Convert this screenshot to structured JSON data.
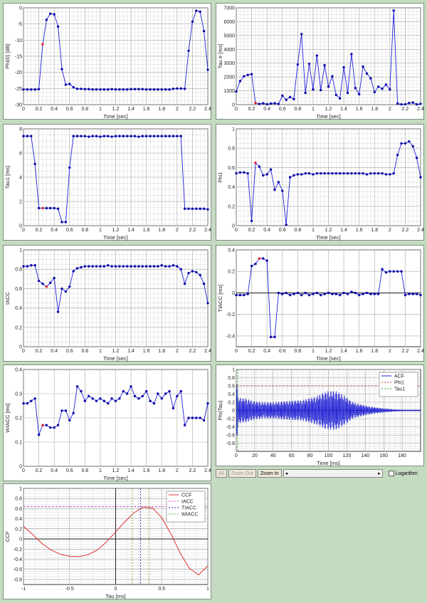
{
  "chart_data": [
    {
      "type": "line",
      "id": "phi0",
      "xlabel": "Time [sec]",
      "ylabel": "Phi(0) [dB]",
      "xlim": [
        0,
        2.4
      ],
      "ylim": [
        -30,
        0
      ],
      "xticks": [
        "0",
        "0.2",
        "0.4",
        "0.6",
        "0.8",
        "1",
        "1.2",
        "1.4",
        "1.6",
        "1.8",
        "2",
        "2.2",
        "2.4"
      ],
      "yticks": [
        "-30",
        "-25",
        "-20",
        "-15",
        "-10",
        "-5",
        "0"
      ],
      "grid": true,
      "highlight_index": 5,
      "x": [
        0,
        0.05,
        0.1,
        0.15,
        0.2,
        0.25,
        0.3,
        0.35,
        0.4,
        0.45,
        0.5,
        0.55,
        0.6,
        0.65,
        0.7,
        0.75,
        0.8,
        0.85,
        0.9,
        0.95,
        1.0,
        1.05,
        1.1,
        1.15,
        1.2,
        1.25,
        1.3,
        1.35,
        1.4,
        1.45,
        1.5,
        1.55,
        1.6,
        1.65,
        1.7,
        1.75,
        1.8,
        1.85,
        1.9,
        1.95,
        2.0,
        2.05,
        2.1,
        2.15,
        2.2,
        2.25,
        2.3,
        2.35,
        2.4
      ],
      "y": [
        -25.3,
        -25.3,
        -25.3,
        -25.3,
        -25.2,
        -11.3,
        -3.7,
        -1.8,
        -2.0,
        -5.8,
        -19.0,
        -23.8,
        -23.6,
        -24.6,
        -25.1,
        -25.1,
        -25.2,
        -25.2,
        -25.3,
        -25.3,
        -25.3,
        -25.3,
        -25.3,
        -25.2,
        -25.3,
        -25.3,
        -25.3,
        -25.3,
        -25.2,
        -25.2,
        -25.2,
        -25.2,
        -25.3,
        -25.3,
        -25.3,
        -25.3,
        -25.3,
        -25.3,
        -25.3,
        -25.1,
        -25.0,
        -25.0,
        -25.1,
        -13.3,
        -4.3,
        -0.9,
        -1.2,
        -7.2,
        -19.2
      ]
    },
    {
      "type": "line",
      "id": "taue",
      "xlabel": "Time [sec]",
      "ylabel": "Tau e [ms]",
      "xlim": [
        0,
        2.4
      ],
      "ylim": [
        0,
        7000
      ],
      "xticks": [
        "0",
        "0.2",
        "0.4",
        "0.6",
        "0.8",
        "1",
        "1.2",
        "1.4",
        "1.6",
        "1.8",
        "2",
        "2.2",
        "2.4"
      ],
      "yticks": [
        "0",
        "1000",
        "2000",
        "3000",
        "4000",
        "5000",
        "6000",
        "7000"
      ],
      "grid": true,
      "highlight_index": 5,
      "x": [
        0,
        0.05,
        0.1,
        0.15,
        0.2,
        0.25,
        0.3,
        0.35,
        0.4,
        0.45,
        0.5,
        0.55,
        0.6,
        0.65,
        0.7,
        0.75,
        0.8,
        0.85,
        0.9,
        0.95,
        1.0,
        1.05,
        1.1,
        1.15,
        1.2,
        1.25,
        1.3,
        1.35,
        1.4,
        1.45,
        1.5,
        1.55,
        1.6,
        1.65,
        1.7,
        1.75,
        1.8,
        1.85,
        1.9,
        1.95,
        2.0,
        2.05,
        2.1,
        2.15,
        2.2,
        2.25,
        2.3,
        2.35,
        2.4
      ],
      "y": [
        950,
        1700,
        2050,
        2150,
        2200,
        120,
        50,
        100,
        30,
        80,
        100,
        50,
        650,
        350,
        550,
        400,
        2900,
        5100,
        850,
        2950,
        1100,
        3550,
        1050,
        2850,
        1300,
        2050,
        700,
        450,
        2700,
        850,
        3650,
        1200,
        750,
        2750,
        2250,
        1900,
        900,
        1300,
        1150,
        1450,
        1100,
        6800,
        80,
        20,
        30,
        120,
        150,
        20,
        60
      ]
    },
    {
      "type": "line",
      "id": "tau1",
      "xlabel": "Time [sec]",
      "ylabel": "Tau1 [ms]",
      "xlim": [
        0,
        2.4
      ],
      "ylim": [
        0,
        8
      ],
      "xticks": [
        "0",
        "0.2",
        "0.4",
        "0.6",
        "0.8",
        "1",
        "1.2",
        "1.4",
        "1.6",
        "1.8",
        "2",
        "2.2",
        "2.4"
      ],
      "yticks": [
        "0",
        "2",
        "4",
        "6",
        "8"
      ],
      "grid": true,
      "highlight_index": 5,
      "x": [
        0,
        0.05,
        0.1,
        0.15,
        0.2,
        0.25,
        0.3,
        0.35,
        0.4,
        0.45,
        0.5,
        0.55,
        0.6,
        0.65,
        0.7,
        0.75,
        0.8,
        0.85,
        0.9,
        0.95,
        1.0,
        1.05,
        1.1,
        1.15,
        1.2,
        1.25,
        1.3,
        1.35,
        1.4,
        1.45,
        1.5,
        1.55,
        1.6,
        1.65,
        1.7,
        1.75,
        1.8,
        1.85,
        1.9,
        1.95,
        2.0,
        2.05,
        2.1,
        2.15,
        2.2,
        2.25,
        2.3,
        2.35,
        2.4
      ],
      "y": [
        7.4,
        7.4,
        7.4,
        5.1,
        1.45,
        1.45,
        1.45,
        1.45,
        1.45,
        1.4,
        0.3,
        0.3,
        4.8,
        7.4,
        7.4,
        7.4,
        7.4,
        7.35,
        7.4,
        7.4,
        7.35,
        7.4,
        7.4,
        7.35,
        7.4,
        7.4,
        7.4,
        7.4,
        7.4,
        7.4,
        7.35,
        7.4,
        7.4,
        7.4,
        7.4,
        7.4,
        7.4,
        7.4,
        7.4,
        7.4,
        7.4,
        7.4,
        1.4,
        1.4,
        1.4,
        1.4,
        1.4,
        1.4,
        1.35
      ]
    },
    {
      "type": "line",
      "id": "phi1",
      "xlabel": "Time [sec]",
      "ylabel": "Phi1",
      "xlim": [
        0,
        2.4
      ],
      "ylim": [
        0,
        1
      ],
      "xticks": [
        "0",
        "0.2",
        "0.4",
        "0.6",
        "0.8",
        "1",
        "1.2",
        "1.4",
        "1.6",
        "1.8",
        "2",
        "2.2",
        "2.4"
      ],
      "yticks": [
        "0",
        "0.2",
        "0.4",
        "0.6",
        "0.8",
        "1"
      ],
      "grid": true,
      "highlight_index": 5,
      "x": [
        0,
        0.05,
        0.1,
        0.15,
        0.2,
        0.25,
        0.3,
        0.35,
        0.4,
        0.45,
        0.5,
        0.55,
        0.6,
        0.65,
        0.7,
        0.75,
        0.8,
        0.85,
        0.9,
        0.95,
        1.0,
        1.05,
        1.1,
        1.15,
        1.2,
        1.25,
        1.3,
        1.35,
        1.4,
        1.45,
        1.5,
        1.55,
        1.6,
        1.65,
        1.7,
        1.75,
        1.8,
        1.85,
        1.9,
        1.95,
        2.0,
        2.05,
        2.1,
        2.15,
        2.2,
        2.25,
        2.3,
        2.35,
        2.4
      ],
      "y": [
        0.54,
        0.55,
        0.55,
        0.54,
        0.05,
        0.65,
        0.61,
        0.52,
        0.53,
        0.58,
        0.37,
        0.45,
        0.36,
        0.01,
        0.5,
        0.52,
        0.53,
        0.53,
        0.54,
        0.54,
        0.53,
        0.54,
        0.54,
        0.54,
        0.54,
        0.54,
        0.54,
        0.54,
        0.54,
        0.54,
        0.54,
        0.54,
        0.54,
        0.54,
        0.53,
        0.54,
        0.54,
        0.54,
        0.54,
        0.53,
        0.53,
        0.54,
        0.73,
        0.85,
        0.85,
        0.87,
        0.82,
        0.7,
        0.5
      ]
    },
    {
      "type": "line",
      "id": "iacc",
      "xlabel": "Time [sec]",
      "ylabel": "IACC",
      "xlim": [
        0,
        2.4
      ],
      "ylim": [
        0,
        1
      ],
      "xticks": [
        "0",
        "0.2",
        "0.4",
        "0.6",
        "0.8",
        "1",
        "1.2",
        "1.4",
        "1.6",
        "1.8",
        "2",
        "2.2",
        "2.4"
      ],
      "yticks": [
        "0",
        "0.2",
        "0.4",
        "0.6",
        "0.8",
        "1"
      ],
      "grid": true,
      "highlight_index": 6,
      "x": [
        0,
        0.05,
        0.1,
        0.15,
        0.2,
        0.25,
        0.3,
        0.35,
        0.4,
        0.45,
        0.5,
        0.55,
        0.6,
        0.65,
        0.7,
        0.75,
        0.8,
        0.85,
        0.9,
        0.95,
        1.0,
        1.05,
        1.1,
        1.15,
        1.2,
        1.25,
        1.3,
        1.35,
        1.4,
        1.45,
        1.5,
        1.55,
        1.6,
        1.65,
        1.7,
        1.75,
        1.8,
        1.85,
        1.9,
        1.95,
        2.0,
        2.05,
        2.1,
        2.15,
        2.2,
        2.25,
        2.3,
        2.35,
        2.4
      ],
      "y": [
        0.83,
        0.83,
        0.84,
        0.84,
        0.68,
        0.65,
        0.62,
        0.66,
        0.71,
        0.36,
        0.6,
        0.57,
        0.62,
        0.78,
        0.81,
        0.82,
        0.83,
        0.83,
        0.83,
        0.83,
        0.83,
        0.83,
        0.84,
        0.83,
        0.83,
        0.83,
        0.83,
        0.83,
        0.83,
        0.83,
        0.83,
        0.83,
        0.83,
        0.83,
        0.83,
        0.83,
        0.84,
        0.83,
        0.83,
        0.84,
        0.83,
        0.8,
        0.65,
        0.76,
        0.78,
        0.77,
        0.74,
        0.65,
        0.45
      ]
    },
    {
      "type": "line",
      "id": "tiacc",
      "xlabel": "Time [sec]",
      "ylabel": "TIACC [ms]",
      "xlim": [
        0,
        2.4
      ],
      "ylim": [
        -0.5,
        0.4
      ],
      "xticks": [
        "0",
        "0.2",
        "0.4",
        "0.6",
        "0.8",
        "1",
        "1.2",
        "1.4",
        "1.6",
        "1.8",
        "2",
        "2.2",
        "2.4"
      ],
      "yticks": [
        "-0.4",
        "-0.2",
        "0",
        "0.2",
        "0.4"
      ],
      "grid": false,
      "highlight_index": 6,
      "x": [
        0,
        0.05,
        0.1,
        0.15,
        0.2,
        0.25,
        0.3,
        0.35,
        0.4,
        0.45,
        0.5,
        0.55,
        0.6,
        0.65,
        0.7,
        0.75,
        0.8,
        0.85,
        0.9,
        0.95,
        1.0,
        1.05,
        1.1,
        1.15,
        1.2,
        1.25,
        1.3,
        1.35,
        1.4,
        1.45,
        1.5,
        1.55,
        1.6,
        1.65,
        1.7,
        1.75,
        1.8,
        1.85,
        1.9,
        1.95,
        2.0,
        2.05,
        2.1,
        2.15,
        2.2,
        2.25,
        2.3,
        2.35,
        2.4
      ],
      "y": [
        -0.02,
        -0.02,
        -0.02,
        -0.01,
        0.25,
        0.27,
        0.32,
        0.32,
        0.3,
        -0.41,
        -0.41,
        0.0,
        -0.01,
        0.0,
        -0.02,
        -0.01,
        0.0,
        -0.02,
        0.0,
        -0.02,
        -0.01,
        0.0,
        -0.02,
        -0.01,
        0.0,
        -0.01,
        -0.01,
        -0.02,
        0.0,
        -0.01,
        0.01,
        0.0,
        -0.02,
        -0.01,
        0.0,
        -0.01,
        -0.01,
        -0.01,
        0.22,
        0.19,
        0.2,
        0.2,
        0.2,
        0.2,
        -0.02,
        -0.01,
        -0.01,
        -0.01,
        -0.02
      ]
    },
    {
      "type": "line",
      "id": "wiacc",
      "xlabel": "Time [sec]",
      "ylabel": "WIACC [ms]",
      "xlim": [
        0,
        2.4
      ],
      "ylim": [
        0,
        0.4
      ],
      "xticks": [
        "0",
        "0.2",
        "0.4",
        "0.6",
        "0.8",
        "1",
        "1.2",
        "1.4",
        "1.6",
        "1.8",
        "2",
        "2.2",
        "2.4"
      ],
      "yticks": [
        "0",
        "0.1",
        "0.2",
        "0.3",
        "0.4"
      ],
      "grid": false,
      "highlight_index": 5,
      "x": [
        0,
        0.05,
        0.1,
        0.15,
        0.2,
        0.25,
        0.3,
        0.35,
        0.4,
        0.45,
        0.5,
        0.55,
        0.6,
        0.65,
        0.7,
        0.75,
        0.8,
        0.85,
        0.9,
        0.95,
        1.0,
        1.05,
        1.1,
        1.15,
        1.2,
        1.25,
        1.3,
        1.35,
        1.4,
        1.45,
        1.5,
        1.55,
        1.6,
        1.65,
        1.7,
        1.75,
        1.8,
        1.85,
        1.9,
        1.95,
        2.0,
        2.05,
        2.1,
        2.15,
        2.2,
        2.25,
        2.3,
        2.35,
        2.4
      ],
      "y": [
        0.26,
        0.26,
        0.27,
        0.28,
        0.13,
        0.17,
        0.17,
        0.16,
        0.16,
        0.17,
        0.23,
        0.23,
        0.19,
        0.22,
        0.33,
        0.31,
        0.27,
        0.29,
        0.28,
        0.27,
        0.28,
        0.27,
        0.26,
        0.28,
        0.27,
        0.28,
        0.31,
        0.3,
        0.33,
        0.29,
        0.28,
        0.29,
        0.31,
        0.27,
        0.26,
        0.3,
        0.28,
        0.3,
        0.31,
        0.24,
        0.29,
        0.31,
        0.17,
        0.2,
        0.2,
        0.2,
        0.2,
        0.19,
        0.26
      ]
    },
    {
      "type": "line",
      "id": "acf",
      "xlabel": "Time [ms]",
      "ylabel": "Phi(Tau)",
      "xlim": [
        0,
        200
      ],
      "ylim": [
        -1,
        1
      ],
      "xticks": [
        "0",
        "20",
        "40",
        "60",
        "80",
        "100",
        "120",
        "140",
        "160",
        "180"
      ],
      "yticks": [
        "-0.8",
        "-0.6",
        "-0.4",
        "-0.2",
        "0",
        "0.2",
        "0.4",
        "0.6",
        "0.8",
        "1"
      ],
      "grid": true,
      "series": [
        {
          "name": "ACF",
          "color": "#1f1fd6",
          "envelope": {
            "x": [
              0,
              2,
              5,
              10,
              20,
              30,
              40,
              50,
              60,
              70,
              80,
              90,
              95,
              100,
              105,
              110,
              115,
              120,
              125,
              130,
              140,
              150,
              160,
              170,
              180
            ],
            "amplitude": [
              0.95,
              0.35,
              0.3,
              0.3,
              0.22,
              0.2,
              0.2,
              0.22,
              0.24,
              0.25,
              0.3,
              0.38,
              0.44,
              0.48,
              0.48,
              0.46,
              0.4,
              0.32,
              0.22,
              0.18,
              0.12,
              0.08,
              0.05,
              0.03,
              0.02
            ]
          }
        },
        {
          "name": "Phi1",
          "color": "#c83232",
          "y": 0.6
        },
        {
          "name": "Tau1",
          "color": "#2a9a2a",
          "x": 1.5
        }
      ]
    },
    {
      "type": "line",
      "id": "ccf",
      "xlabel": "Tau [ms]",
      "ylabel": "CCF",
      "xlim": [
        -1,
        1
      ],
      "ylim": [
        -0.9,
        1
      ],
      "xticks": [
        "-1",
        "-0.5",
        "0",
        "0.5",
        "1"
      ],
      "yticks": [
        "-0.8",
        "-0.6",
        "-0.4",
        "-0.2",
        "0",
        "0.2",
        "0.4",
        "0.6",
        "0.8",
        "1"
      ],
      "grid": true,
      "series": [
        {
          "name": "CCF",
          "color": "#e03030",
          "x": [
            -1,
            -0.9,
            -0.8,
            -0.7,
            -0.6,
            -0.5,
            -0.4,
            -0.3,
            -0.2,
            -0.1,
            0,
            0.1,
            0.2,
            0.3,
            0.4,
            0.5,
            0.6,
            0.7,
            0.8,
            0.9,
            1.0
          ],
          "y": [
            0.25,
            0.09,
            -0.09,
            -0.22,
            -0.3,
            -0.34,
            -0.35,
            -0.31,
            -0.22,
            -0.06,
            0.14,
            0.34,
            0.52,
            0.63,
            0.61,
            0.42,
            0.1,
            -0.28,
            -0.58,
            -0.71,
            -0.53
          ]
        },
        {
          "name": "IACC",
          "color": "#cc44cc",
          "y": 0.64
        },
        {
          "name": "TIACC",
          "color": "#2233bb",
          "x": 0.27
        },
        {
          "name": "WIACC",
          "color": "#66aa44",
          "x": [
            0.18,
            0.36
          ]
        }
      ]
    }
  ],
  "toolbar": {
    "all_label": "All",
    "zoom_out_label": "Zoom Out",
    "zoom_in_label": "Zoom In",
    "scroll_left": "◂",
    "scroll_right": "▸",
    "logarithm_label": "Logarithm"
  }
}
